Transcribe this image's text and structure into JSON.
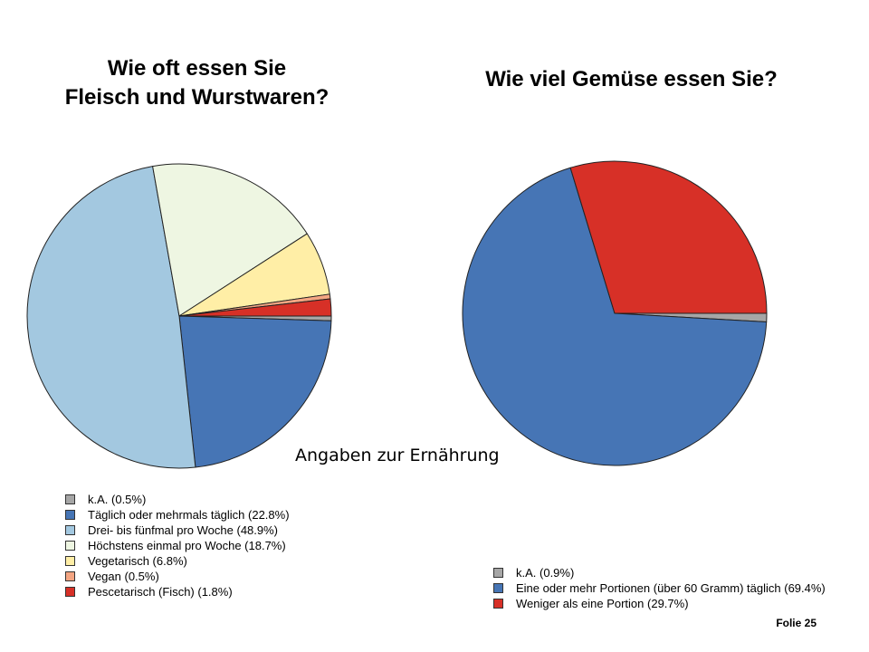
{
  "chart_data": [
    {
      "type": "pie",
      "title": "Wie oft essen Sie Fleisch und Wurstwaren?",
      "title_lines": [
        "Wie oft essen Sie",
        "Fleisch und Wurstwaren?"
      ],
      "legend_position": "bottom-left",
      "slices": [
        {
          "label": "k.A. (0.5%)",
          "value": 0.5,
          "color": "#a6a6a6"
        },
        {
          "label": "Täglich oder mehrmals täglich (22.8%)",
          "value": 22.8,
          "color": "#4675b5"
        },
        {
          "label": "Drei- bis fünfmal pro Woche (48.9%)",
          "value": 48.9,
          "color": "#a3c8e0"
        },
        {
          "label": "Höchstens einmal pro Woche (18.7%)",
          "value": 18.7,
          "color": "#eef6e2"
        },
        {
          "label": "Vegetarisch (6.8%)",
          "value": 6.8,
          "color": "#ffeea6"
        },
        {
          "label": "Vegan (0.5%)",
          "value": 0.5,
          "color": "#f4a582"
        },
        {
          "label": "Pescetarisch (Fisch) (1.8%)",
          "value": 1.8,
          "color": "#d73027"
        }
      ]
    },
    {
      "type": "pie",
      "title": "Wie viel Gemüse essen Sie?",
      "legend_position": "bottom-right",
      "slices": [
        {
          "label": "k.A. (0.9%)",
          "value": 0.9,
          "color": "#a6a6a6"
        },
        {
          "label": "Eine oder mehr Portionen (über 60 Gramm) täglich (69.4%)",
          "value": 69.4,
          "color": "#4675b5"
        },
        {
          "label": "Weniger als eine Portion (29.7%)",
          "value": 29.7,
          "color": "#d73027"
        }
      ]
    }
  ],
  "subtitle": "Angaben zur Ernährung",
  "footer": "Folie 25"
}
